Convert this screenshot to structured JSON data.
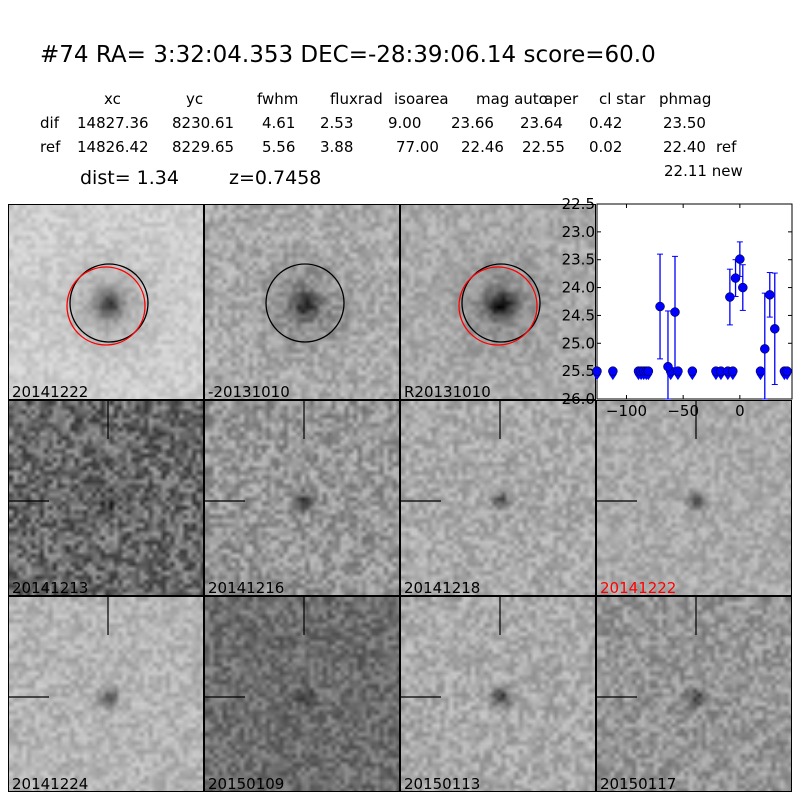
{
  "header": {
    "title": "#74   RA= 3:32:04.353 DEC=-28:39:06.14      score=60.0",
    "columns": [
      "xc",
      "yc",
      "fwhm",
      "fluxrad",
      "isoarea",
      "mag auto",
      "aper",
      "cl star",
      "phmag"
    ],
    "rows": [
      {
        "label": "dif",
        "values": [
          "14827.36",
          "8230.61",
          "4.61",
          "2.53",
          "9.00",
          "23.66",
          "23.64",
          "0.42",
          "23.50"
        ],
        "suffix": ""
      },
      {
        "label": "ref",
        "values": [
          "14826.42",
          "8229.65",
          "5.56",
          "3.88",
          "77.00",
          "22.46",
          "22.55",
          "0.02",
          "22.40"
        ],
        "suffix": "ref"
      }
    ],
    "new_phmag": "22.11 new",
    "dist": "dist=  1.34",
    "z": "z=0.7458"
  },
  "stamps": [
    {
      "label": "20141222",
      "label_color": "#000000",
      "marker": "circles-black-red"
    },
    {
      "label": "-20131010",
      "label_color": "#000000",
      "marker": "circle-black"
    },
    {
      "label": "R20131010",
      "label_color": "#000000",
      "marker": "circles-black-red"
    },
    {
      "label": "20141213",
      "label_color": "#000000",
      "marker": "crosshair"
    },
    {
      "label": "20141216",
      "label_color": "#000000",
      "marker": "crosshair"
    },
    {
      "label": "20141218",
      "label_color": "#000000",
      "marker": "crosshair"
    },
    {
      "label": "20141222",
      "label_color": "#ff0000",
      "marker": "crosshair"
    },
    {
      "label": "20141224",
      "label_color": "#000000",
      "marker": "crosshair"
    },
    {
      "label": "20150109",
      "label_color": "#000000",
      "marker": "crosshair"
    },
    {
      "label": "20150113",
      "label_color": "#000000",
      "marker": "crosshair"
    },
    {
      "label": "20150117",
      "label_color": "#000000",
      "marker": "crosshair"
    }
  ],
  "chart_data": {
    "type": "scatter",
    "xlim": [
      -126,
      46
    ],
    "ylim": [
      26.0,
      22.5
    ],
    "y_inverted": true,
    "xticks": [
      -100,
      -50,
      0
    ],
    "yticks": [
      22.5,
      23.0,
      23.5,
      24.0,
      24.5,
      25.0,
      25.5,
      26.0
    ],
    "color": "#0000ff",
    "detections": [
      {
        "x": -70.4,
        "y": 24.34,
        "err": 0.94
      },
      {
        "x": -63.4,
        "y": 25.42,
        "err": 1.0
      },
      {
        "x": -57.2,
        "y": 24.44,
        "err": 1.0
      },
      {
        "x": -8.8,
        "y": 24.17,
        "err": 0.5
      },
      {
        "x": -3.8,
        "y": 23.83,
        "err": 0.33
      },
      {
        "x": 0.0,
        "y": 23.49,
        "err": 0.31
      },
      {
        "x": 2.6,
        "y": 24.0,
        "err": 0.41
      },
      {
        "x": 22.0,
        "y": 25.1,
        "err": 1.0
      },
      {
        "x": 26.4,
        "y": 24.13,
        "err": 0.4
      },
      {
        "x": 30.8,
        "y": 24.74,
        "err": 1.0
      }
    ],
    "upper_limits": {
      "y": 25.5,
      "x": [
        -126,
        -112,
        -89.4,
        -87.1,
        -84.8,
        -82.5,
        -80.7,
        -61,
        -54.6,
        -41.9,
        -21.1,
        -16.7,
        -10.6,
        -6.2,
        18.2,
        39.3,
        41.7
      ]
    }
  }
}
